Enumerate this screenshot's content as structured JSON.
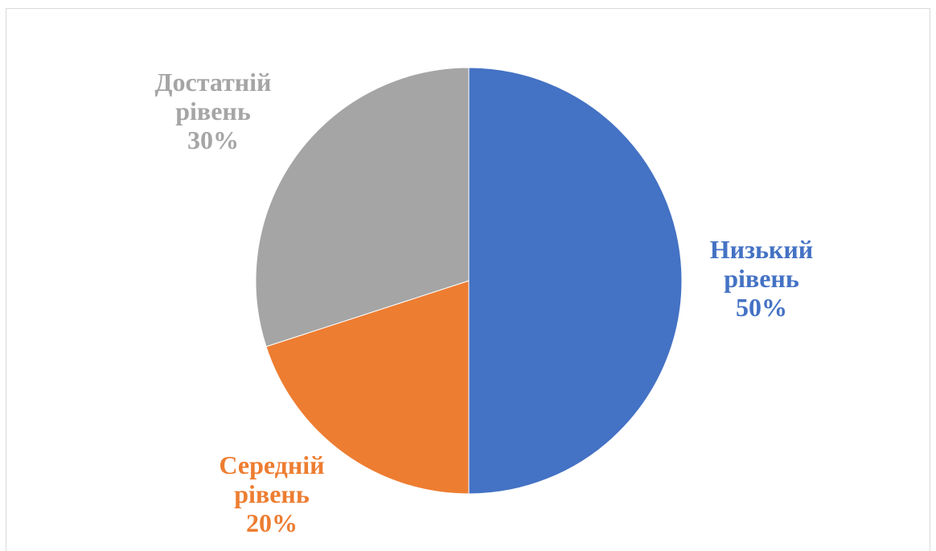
{
  "chart_data": {
    "type": "pie",
    "title": "",
    "start_angle_deg": 0,
    "direction": "clockwise",
    "slices": [
      {
        "category": "Низький рівень",
        "label_lines": [
          "Низький",
          "рівень"
        ],
        "value": 50,
        "percent_label": "50%",
        "color": "#4472C4"
      },
      {
        "category": "Середній рівень",
        "label_lines": [
          "Середній",
          "рівень"
        ],
        "value": 20,
        "percent_label": "20%",
        "color": "#ED7D31"
      },
      {
        "category": "Достатній рівень",
        "label_lines": [
          "Достатній",
          "рівень"
        ],
        "value": 30,
        "percent_label": "30%",
        "color": "#A5A5A5"
      }
    ]
  }
}
